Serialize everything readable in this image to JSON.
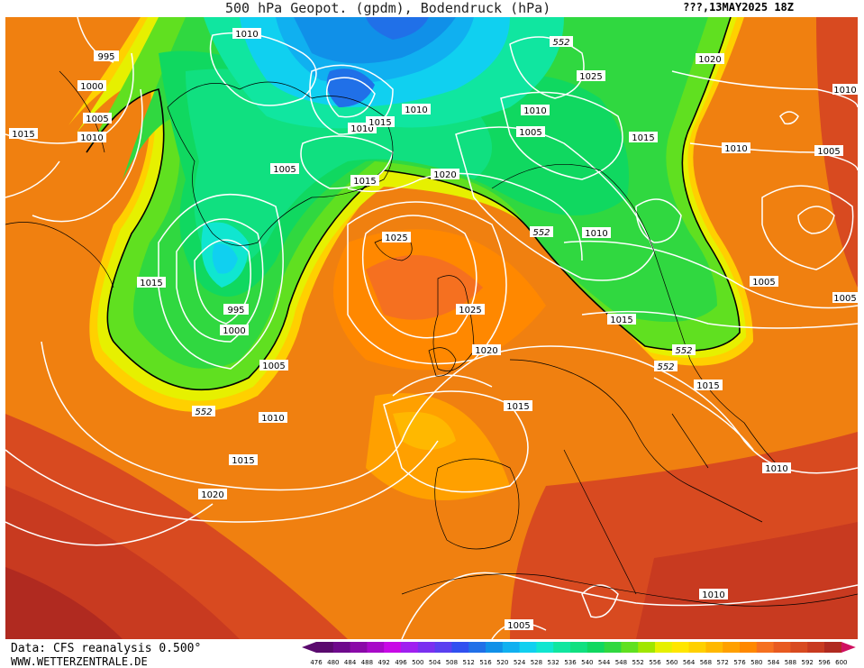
{
  "header": {
    "title": "500 hPa Geopot. (gpdm), Bodendruck (hPa)",
    "date": "???,13MAY2025 18Z"
  },
  "footer": {
    "source": "Data: CFS reanalysis 0.500°",
    "website": "WWW.WETTERZENTRALE.DE"
  },
  "legend": {
    "ticks": [
      "476",
      "480",
      "484",
      "488",
      "492",
      "496",
      "500",
      "504",
      "508",
      "512",
      "516",
      "520",
      "524",
      "528",
      "532",
      "536",
      "540",
      "544",
      "548",
      "552",
      "556",
      "560",
      "564",
      "568",
      "572",
      "576",
      "580",
      "584",
      "588",
      "592",
      "596",
      "600"
    ],
    "colors": [
      "#5a0a6e",
      "#6e0a8c",
      "#8a0aa8",
      "#a80ac8",
      "#c80ae6",
      "#a020f0",
      "#7a30f0",
      "#5a40f0",
      "#3050f0",
      "#2070e8",
      "#1090e8",
      "#10b0f0",
      "#10d0f0",
      "#10e6d0",
      "#10e6a0",
      "#10e080",
      "#10d860",
      "#30d840",
      "#60e020",
      "#a0e600",
      "#e6f000",
      "#ffe600",
      "#ffd000",
      "#ffb800",
      "#ffa000",
      "#ff8800",
      "#f57020",
      "#e85a20",
      "#d84a20",
      "#c83a20",
      "#b02a20",
      "#d01060"
    ]
  },
  "map": {
    "pressure_labels": [
      "1010",
      "995",
      "1000",
      "1005",
      "1015",
      "1010",
      "1010",
      "1015",
      "1010",
      "1005",
      "1015",
      "1020",
      "1025",
      "1010",
      "1005",
      "1015",
      "1020",
      "1010",
      "1005",
      "1015",
      "1025",
      "1025",
      "1020",
      "1010",
      "1015",
      "1005",
      "1000",
      "995",
      "1005",
      "1010",
      "1015",
      "1020",
      "1015",
      "1010",
      "1005",
      "1010",
      "1005",
      "1010",
      "1015",
      "1010",
      "1010",
      "1005"
    ],
    "gpdm_labels": [
      "552",
      "552",
      "552",
      "552",
      "552"
    ]
  }
}
